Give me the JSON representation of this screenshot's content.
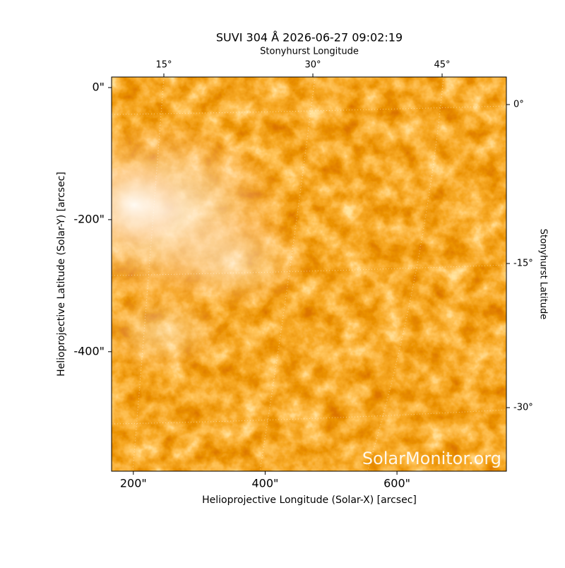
{
  "chart_data": {
    "type": "image",
    "title": "SUVI 304 Å 2026-06-27 09:02:19",
    "xlabel": "Helioprojective Longitude (Solar-X) [arcsec]",
    "ylabel": "Helioprojective Latitude (Solar-Y) [arcsec]",
    "x2label": "Stonyhurst Longitude",
    "y2label": "Stonyhurst Latitude",
    "xlim": [
      167,
      766
    ],
    "ylim": [
      -581,
      16
    ],
    "xticks": [
      {
        "value": 200,
        "label": "200\""
      },
      {
        "value": 400,
        "label": "400\""
      },
      {
        "value": 600,
        "label": "600\""
      }
    ],
    "yticks": [
      {
        "value": 0,
        "label": "0\""
      },
      {
        "value": -200,
        "label": "-200\""
      },
      {
        "value": -400,
        "label": "-400\""
      }
    ],
    "x2ticks": [
      {
        "value": 15,
        "label": "15°"
      },
      {
        "value": 30,
        "label": "30°"
      },
      {
        "value": 45,
        "label": "45°"
      }
    ],
    "y2ticks": [
      {
        "value": 0,
        "label": "0°"
      },
      {
        "value": -15,
        "label": "-15°"
      },
      {
        "value": -30,
        "label": "-30°"
      }
    ],
    "watermark": "SolarMonitor.org"
  }
}
